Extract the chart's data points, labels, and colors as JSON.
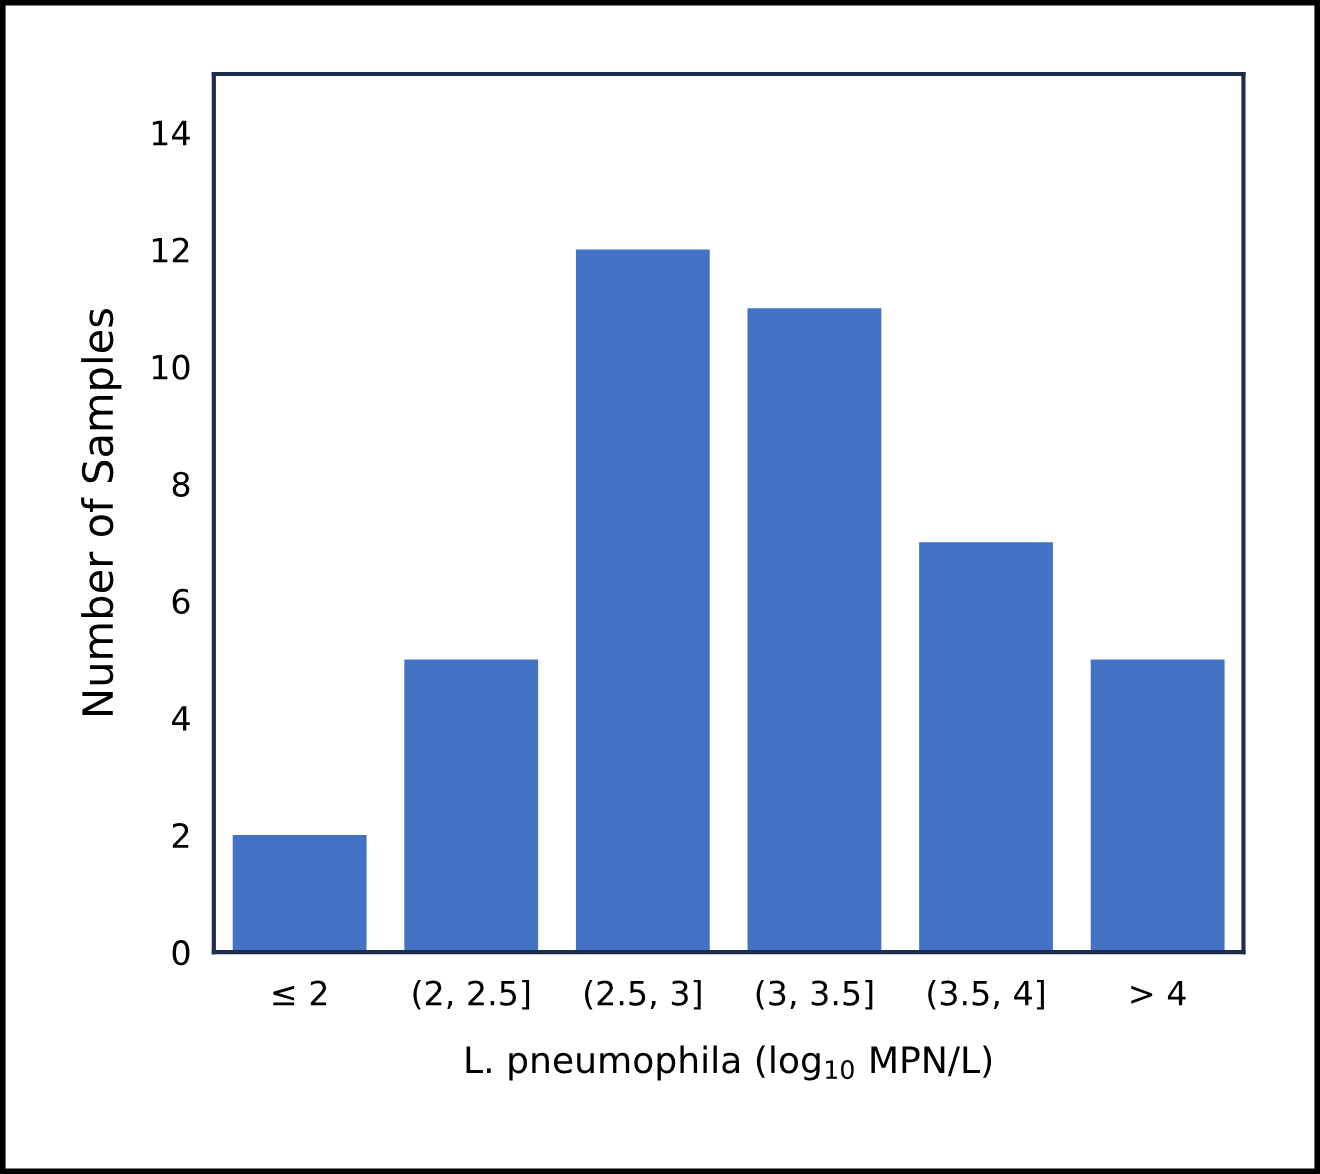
{
  "chart_data": {
    "type": "bar",
    "categories": [
      "≤ 2",
      "(2, 2.5]",
      "(2.5, 3]",
      "(3, 3.5]",
      "(3.5, 4]",
      "> 4"
    ],
    "values": [
      2,
      5,
      12,
      11,
      7,
      5
    ],
    "color": "#4472c4",
    "xlabel": "L. pneumophila (log$_{10}$ MPN/L)",
    "ylabel": "Number of Samples",
    "ylim": [
      0,
      15
    ],
    "yticks": [
      0,
      2,
      4,
      6,
      8,
      10,
      12,
      14
    ],
    "grid": false,
    "legend": false
  }
}
